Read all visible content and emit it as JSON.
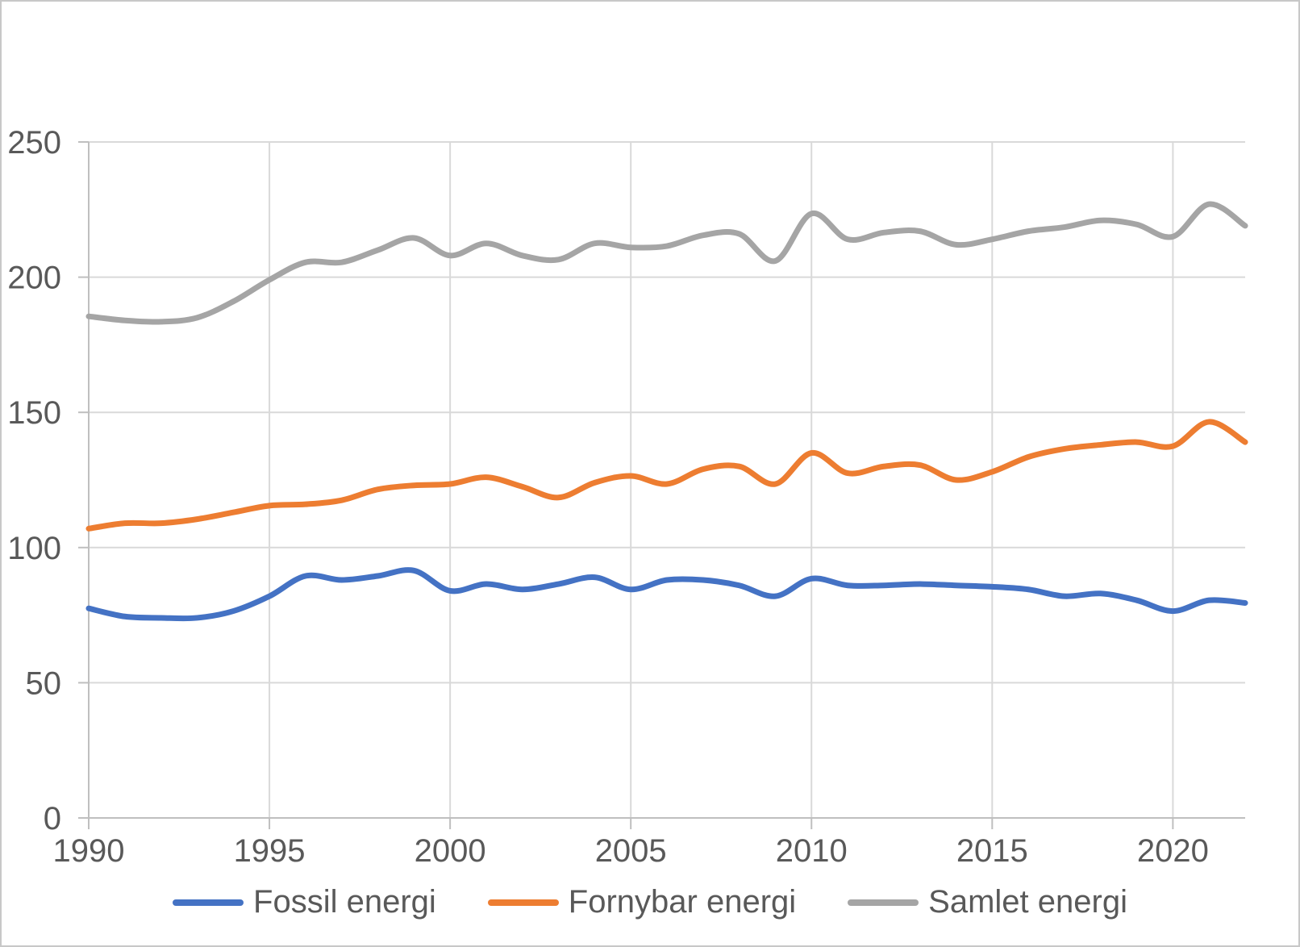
{
  "chart_data": {
    "type": "line",
    "title": "",
    "xlabel": "",
    "ylabel": "",
    "x": [
      1990,
      1991,
      1992,
      1993,
      1994,
      1995,
      1996,
      1997,
      1998,
      1999,
      2000,
      2001,
      2002,
      2003,
      2004,
      2005,
      2006,
      2007,
      2008,
      2009,
      2010,
      2011,
      2012,
      2013,
      2014,
      2015,
      2016,
      2017,
      2018,
      2019,
      2020,
      2021,
      2022
    ],
    "series": [
      {
        "name": "Fossil energi",
        "color": "#4472C4",
        "values": [
          77.5,
          74.5,
          74,
          74,
          76.5,
          82,
          89.5,
          88,
          89.5,
          91.5,
          84,
          86.5,
          84.5,
          86.5,
          89,
          84.5,
          88,
          88,
          86,
          82,
          88.5,
          86,
          86,
          86.5,
          86,
          85.5,
          84.5,
          82,
          83,
          80.5,
          76.5,
          80.5,
          79.5
        ]
      },
      {
        "name": "Fornybar energi",
        "color": "#ED7D31",
        "values": [
          107,
          109,
          109,
          110.5,
          113,
          115.5,
          116,
          117.5,
          121.5,
          123,
          123.5,
          126,
          122.5,
          118.5,
          124,
          126.5,
          123.5,
          129,
          130,
          123.5,
          135,
          127.5,
          130,
          130.5,
          125,
          128,
          133.5,
          136.5,
          138,
          139,
          137.5,
          146.5,
          139
        ]
      },
      {
        "name": "Samlet energi",
        "color": "#A5A5A5",
        "values": [
          185.5,
          184,
          183.5,
          185,
          191,
          199,
          205.5,
          205.5,
          210,
          214.5,
          208,
          212.5,
          208,
          206.5,
          212.5,
          211,
          211.5,
          215.5,
          216,
          206,
          223.5,
          214,
          216.5,
          217,
          212,
          214,
          217,
          218.5,
          221,
          219.5,
          215,
          227,
          219
        ]
      }
    ],
    "x_ticks": [
      1990,
      1995,
      2000,
      2005,
      2010,
      2015,
      2020
    ],
    "y_ticks": [
      0,
      50,
      100,
      150,
      200,
      250
    ],
    "xlim": [
      1990,
      2022
    ],
    "ylim": [
      0,
      250
    ],
    "grid": true,
    "smooth": true,
    "legend_position": "bottom",
    "colors": {
      "gridline": "#D9D9D9",
      "axis": "#BFBFBF",
      "tick_label": "#595959",
      "background": "#FFFFFF",
      "frame_border": "#C8C8C8"
    }
  }
}
